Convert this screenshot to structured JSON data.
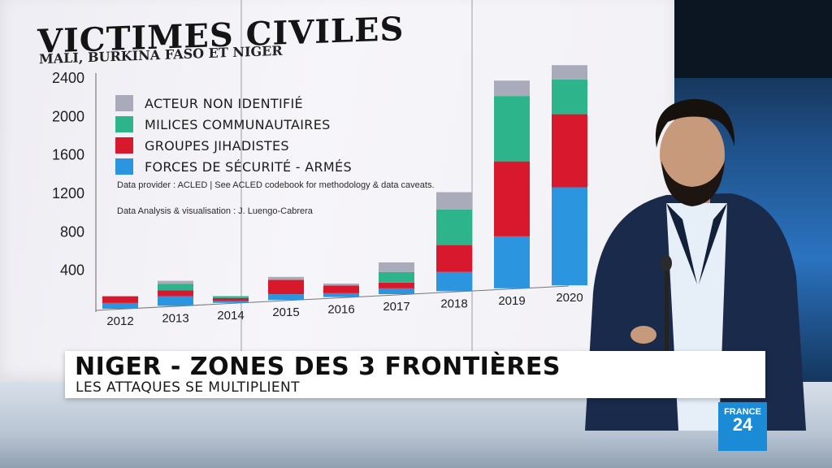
{
  "overlay": {
    "headline": "NIGER - ZONES DES 3 FRONTIÈRES",
    "subline": "LES ATTAQUES SE MULTIPLIENT",
    "logo": {
      "top": "FRANCE",
      "number": "24",
      "color": "#1b8bd6"
    }
  },
  "chart": {
    "title": "VICTIMES CIVILES",
    "subtitle": "MALI, BURKINA FASO ET NIGER",
    "credits": [
      "Data provider : ACLED | See ACLED codebook for methodology & data caveats.",
      "Data Analysis & visualisation : J. Luengo-Cabrera"
    ]
  },
  "chart_data": {
    "type": "bar",
    "stacked": true,
    "title": "VICTIMES CIVILES",
    "subtitle": "MALI, BURKINA FASO ET NIGER",
    "categories": [
      "2012",
      "2013",
      "2014",
      "2015",
      "2016",
      "2017",
      "2018",
      "2019",
      "2020"
    ],
    "y_ticks": [
      "400",
      "800",
      "1200",
      "1600",
      "2000",
      "2400"
    ],
    "ylim": [
      0,
      2400
    ],
    "legend_placement": "top-left",
    "grid": false,
    "series": [
      {
        "name": "FORCES DE SÉCURITÉ - ARMÉS",
        "color": "#2b95e0",
        "values": [
          60,
          100,
          20,
          60,
          40,
          60,
          200,
          540,
          1020
        ]
      },
      {
        "name": "GROUPES JIHADISTES",
        "color": "#d8192d",
        "values": [
          70,
          60,
          30,
          150,
          80,
          60,
          280,
          780,
          760
        ]
      },
      {
        "name": "MILICES COMMUNAUTAIRES",
        "color": "#2db48a",
        "values": [
          0,
          70,
          20,
          0,
          0,
          110,
          370,
          680,
          360
        ]
      },
      {
        "name": "ACTEUR NON IDENTIFIÉ",
        "color": "#a9abbb",
        "values": [
          0,
          30,
          0,
          30,
          20,
          100,
          180,
          160,
          150
        ]
      }
    ]
  },
  "colors": {
    "wall": "#f2f1f6",
    "studio_blue": "#2b73c0"
  }
}
